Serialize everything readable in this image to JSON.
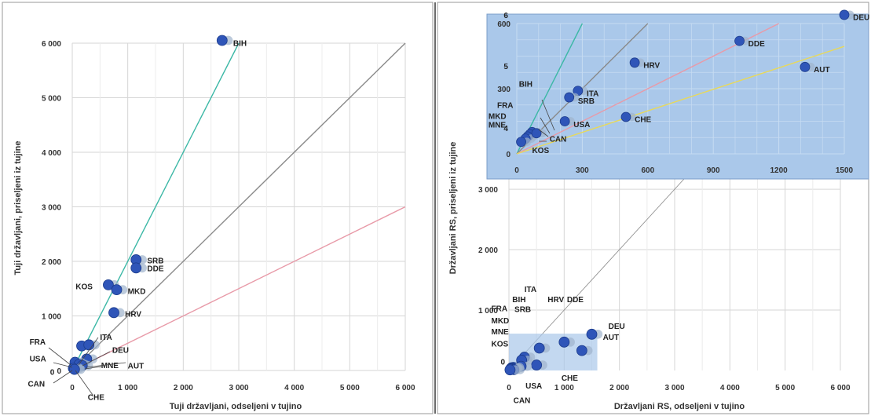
{
  "colors": {
    "point": "#2f55b8",
    "point_edge": "#1c3c8c",
    "line_x2": "#3cb8a6",
    "line_x1": "#8a8a8a",
    "line_half": "#e89aa8",
    "line_yellow": "#e8d95a",
    "grid": "#d6d6d6",
    "inset_bg": "#aac8ea",
    "inset_grid": "#c7dcf2",
    "panel_border": "#9a9a9a",
    "divider": "#6b6b6b"
  },
  "chart_data": [
    {
      "type": "scatter",
      "title": "",
      "xlabel": "Tuji državljani, odseljeni v tujino",
      "ylabel": "Tuji državljani, priseljeni iz tujine",
      "xlim": [
        0,
        6000
      ],
      "ylim": [
        0,
        6000
      ],
      "grid": true,
      "x_ticks": [
        "0",
        "1 000",
        "2 000",
        "3 000",
        "4 000",
        "5 000",
        "6 000"
      ],
      "y_ticks": [
        "0",
        "1 000",
        "2 000",
        "3 000",
        "4 000",
        "5 000",
        "6 000"
      ],
      "reference_lines": [
        {
          "slope": 2,
          "color": "line_x2"
        },
        {
          "slope": 1,
          "color": "line_x1"
        },
        {
          "slope": 0.5,
          "color": "line_half"
        }
      ],
      "points": [
        {
          "label": "BIH",
          "x": 2700,
          "y": 6050
        },
        {
          "label": "SRB",
          "x": 1150,
          "y": 2030
        },
        {
          "label": "DDE",
          "x": 1150,
          "y": 1880
        },
        {
          "label": "KOS",
          "x": 650,
          "y": 1570
        },
        {
          "label": "MKD",
          "x": 800,
          "y": 1480
        },
        {
          "label": "HRV",
          "x": 750,
          "y": 1060
        },
        {
          "label": "FRA",
          "x": 170,
          "y": 450
        },
        {
          "label": "ITA",
          "x": 300,
          "y": 470
        },
        {
          "label": "DEU",
          "x": 260,
          "y": 210
        },
        {
          "label": "USA",
          "x": 50,
          "y": 150
        },
        {
          "label": "MNE",
          "x": 120,
          "y": 110
        },
        {
          "label": "AUT",
          "x": 180,
          "y": 90
        },
        {
          "label": "CAN",
          "x": 20,
          "y": 40
        },
        {
          "label": "CHE",
          "x": 40,
          "y": 20
        }
      ],
      "callouts": [
        {
          "label": "BIH",
          "x": 2900,
          "y": 6010
        },
        {
          "label": "SRB",
          "x": 1350,
          "y": 2020
        },
        {
          "label": "DDE",
          "x": 1350,
          "y": 1880
        },
        {
          "label": "KOS",
          "x": 60,
          "y": 1550
        },
        {
          "label": "MKD",
          "x": 1000,
          "y": 1460
        },
        {
          "label": "HRV",
          "x": 950,
          "y": 1040
        },
        {
          "label": "FRA",
          "x": -770,
          "y": 530
        },
        {
          "label": "ITA",
          "x": 500,
          "y": 620
        },
        {
          "label": "DEU",
          "x": 720,
          "y": 380
        },
        {
          "label": "USA",
          "x": -770,
          "y": 220
        },
        {
          "label": "MNE",
          "x": 520,
          "y": 100
        },
        {
          "label": "AUT",
          "x": 1000,
          "y": 90
        },
        {
          "label": "CAN",
          "x": -800,
          "y": -240
        },
        {
          "label": "CHE",
          "x": 280,
          "y": -480
        },
        {
          "label": "0",
          "x": -400,
          "y": -20
        }
      ]
    },
    {
      "type": "scatter",
      "title": "",
      "xlabel": "Državljani RS, odseljeni v tujino",
      "ylabel": "Državljani RS, priseljeni iz tujine",
      "xlim": [
        0,
        6000
      ],
      "ylim": [
        0,
        3300
      ],
      "grid": true,
      "x_ticks": [
        "0",
        "1 000",
        "2 000",
        "3 000",
        "4 000",
        "5 000",
        "6 000"
      ],
      "y_ticks": [
        "1 000",
        "2 000",
        "3 000"
      ],
      "reference_lines": [
        {
          "slope": 1,
          "color": "line_x1"
        }
      ],
      "points": [
        {
          "label": "DEU",
          "x": 1500,
          "y": 600
        },
        {
          "label": "DDE",
          "x": 1000,
          "y": 470
        },
        {
          "label": "AUT",
          "x": 1320,
          "y": 330
        },
        {
          "label": "HRV",
          "x": 550,
          "y": 370
        },
        {
          "label": "ITA",
          "x": 280,
          "y": 220
        },
        {
          "label": "SRB",
          "x": 230,
          "y": 170
        },
        {
          "label": "CHE",
          "x": 500,
          "y": 90
        },
        {
          "label": "USA",
          "x": 220,
          "y": 70
        },
        {
          "label": "BIH",
          "x": 80,
          "y": 50
        },
        {
          "label": "FRA",
          "x": 50,
          "y": 45
        },
        {
          "label": "MKD",
          "x": 40,
          "y": 35
        },
        {
          "label": "MNE",
          "x": 30,
          "y": 25
        },
        {
          "label": "CAN",
          "x": 90,
          "y": 15
        },
        {
          "label": "KOS",
          "x": 20,
          "y": 10
        }
      ],
      "callouts": [
        {
          "label": "ITA",
          "x": 280,
          "y": 1350
        },
        {
          "label": "BIH",
          "x": 60,
          "y": 1180
        },
        {
          "label": "SRB",
          "x": 100,
          "y": 1020
        },
        {
          "label": "HRV",
          "x": 700,
          "y": 1180
        },
        {
          "label": "DDE",
          "x": 1050,
          "y": 1180
        },
        {
          "label": "FRA",
          "x": -320,
          "y": 1030
        },
        {
          "label": "MKD",
          "x": -320,
          "y": 830
        },
        {
          "label": "MNE",
          "x": -320,
          "y": 650
        },
        {
          "label": "KOS",
          "x": -320,
          "y": 450
        },
        {
          "label": "DEU",
          "x": 1800,
          "y": 740
        },
        {
          "label": "AUT",
          "x": 1700,
          "y": 560
        },
        {
          "label": "CHE",
          "x": 950,
          "y": -120
        },
        {
          "label": "USA",
          "x": 300,
          "y": -250
        },
        {
          "label": "CAN",
          "x": 80,
          "y": -490
        },
        {
          "label": "0",
          "x": -150,
          "y": 150
        }
      ]
    },
    {
      "type": "scatter",
      "title": "",
      "xlabel": "",
      "ylabel": "",
      "xlim": [
        0,
        1500
      ],
      "ylim": [
        0,
        600
      ],
      "grid": true,
      "x_ticks": [
        "0",
        "300",
        "600",
        "900",
        "1200",
        "1500"
      ],
      "y_ticks": [
        "0",
        "300",
        "600"
      ],
      "reference_lines": [
        {
          "slope": 2,
          "color": "line_x2"
        },
        {
          "slope": 1,
          "color": "line_x1"
        },
        {
          "slope": 0.5,
          "color": "line_half"
        },
        {
          "slope": 0.33,
          "color": "line_yellow"
        }
      ],
      "points": [
        {
          "label": "DEU",
          "x": 1500,
          "y": 640
        },
        {
          "label": "DDE",
          "x": 1020,
          "y": 520
        },
        {
          "label": "AUT",
          "x": 1320,
          "y": 400
        },
        {
          "label": "HRV",
          "x": 540,
          "y": 420
        },
        {
          "label": "ITA",
          "x": 280,
          "y": 290
        },
        {
          "label": "SRB",
          "x": 240,
          "y": 260
        },
        {
          "label": "CHE",
          "x": 500,
          "y": 170
        },
        {
          "label": "USA",
          "x": 220,
          "y": 150
        },
        {
          "label": "BIH",
          "x": 70,
          "y": 100
        },
        {
          "label": "FRA",
          "x": 60,
          "y": 90
        },
        {
          "label": "MKD",
          "x": 50,
          "y": 80
        },
        {
          "label": "MNE",
          "x": 40,
          "y": 70
        },
        {
          "label": "CAN",
          "x": 90,
          "y": 95
        },
        {
          "label": "KOS",
          "x": 20,
          "y": 55
        }
      ],
      "callouts": [
        {
          "label": "DEU",
          "x": 1540,
          "y": 630
        },
        {
          "label": "DDE",
          "x": 1060,
          "y": 510
        },
        {
          "label": "AUT",
          "x": 1360,
          "y": 390
        },
        {
          "label": "HRV",
          "x": 580,
          "y": 410
        },
        {
          "label": "ITA",
          "x": 320,
          "y": 280
        },
        {
          "label": "SRB",
          "x": 280,
          "y": 245
        },
        {
          "label": "CHE",
          "x": 540,
          "y": 160
        },
        {
          "label": "USA",
          "x": 260,
          "y": 138
        },
        {
          "label": "BIH",
          "x": 10,
          "y": 323
        },
        {
          "label": "FRA",
          "x": -90,
          "y": 226
        },
        {
          "label": "MKD",
          "x": -130,
          "y": 175
        },
        {
          "label": "MNE",
          "x": -130,
          "y": 135
        },
        {
          "label": "CAN",
          "x": 150,
          "y": 70
        },
        {
          "label": "KOS",
          "x": 70,
          "y": 18
        },
        {
          "label": "6",
          "x": -60,
          "y": 640
        },
        {
          "label": "5",
          "x": -60,
          "y": 405
        },
        {
          "label": "4",
          "x": -60,
          "y": 120
        }
      ]
    }
  ]
}
